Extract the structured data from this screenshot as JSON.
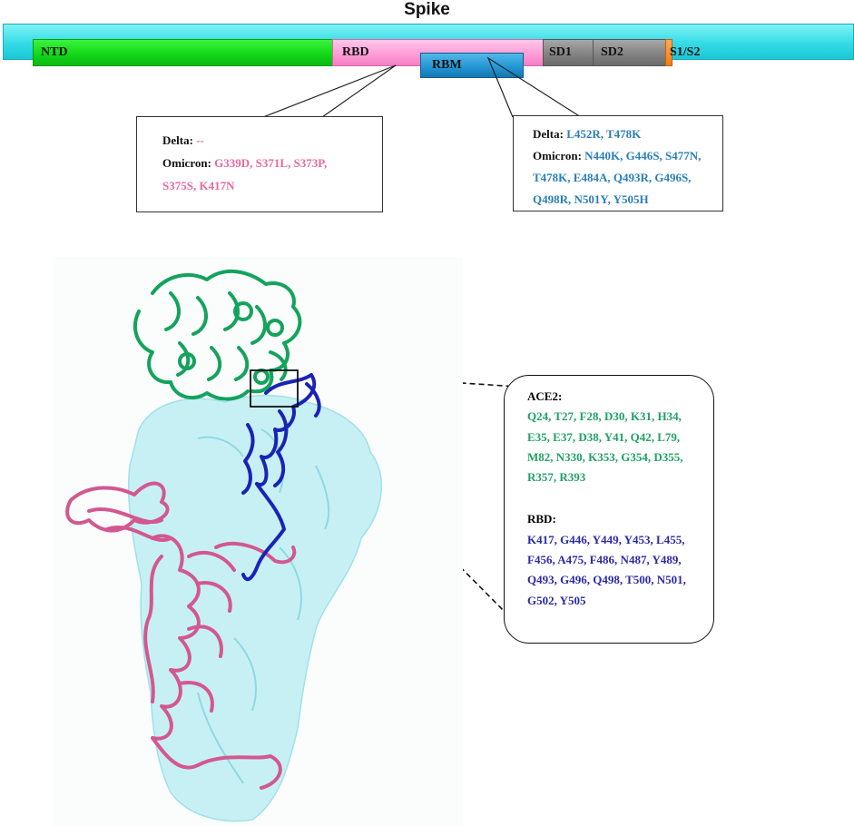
{
  "title": "Spike",
  "domains": {
    "ntd": "NTD",
    "rbd": "RBD",
    "rbm": "RBM",
    "sd1": "SD1",
    "sd2": "SD2",
    "s1s2": "S1/S2"
  },
  "callout_rbd": {
    "delta_label": "Delta:",
    "delta_value": "--",
    "omicron_label": "Omicron:",
    "omicron_line1": "G339D, S371L, S373P,",
    "omicron_line2": "S375S, K417N"
  },
  "callout_rbm": {
    "delta_label": "Delta:",
    "delta_value": "L452R, T478K",
    "omicron_label": "Omicron:",
    "omicron_line1": "N440K, G446S, S477N,",
    "omicron_line2": "T478K, E484A, Q493R, G496S,",
    "omicron_line3": "Q498R, N501Y, Y505H"
  },
  "contacts": {
    "ace2_label": "ACE2:",
    "ace2_lines": [
      "Q24, T27, F28, D30, K31, H34,",
      "E35, E37, D38, Y41, Q42, L79,",
      "M82, N330, K353, G354, D355,",
      "R357, R393"
    ],
    "rbd_label": "RBD:",
    "rbd_lines": [
      "K417, G446, Y449, Y453, L455,",
      "F456, A475, F486, N487, Y489,",
      "Q493, G496, Q498, T500, N501,",
      "G502, Y505"
    ]
  },
  "colors": {
    "spike": "#33dbe6",
    "ntd": "#11d616",
    "rbd": "#ff9ad6",
    "rbm": "#2194d3",
    "sd": "#808080",
    "s1s2": "#f07e12",
    "ace2_text": "#1fa264",
    "rbd_text": "#2b2aa8",
    "delta_omicron_rbd": "#e8689e",
    "delta_omicron_rbm": "#2b7fb8",
    "ace2_structure": "#14a35c",
    "rbd_structure": "#1a23b5",
    "spike_chain": "#d3588f",
    "spike_surface": "#b8eef3"
  }
}
